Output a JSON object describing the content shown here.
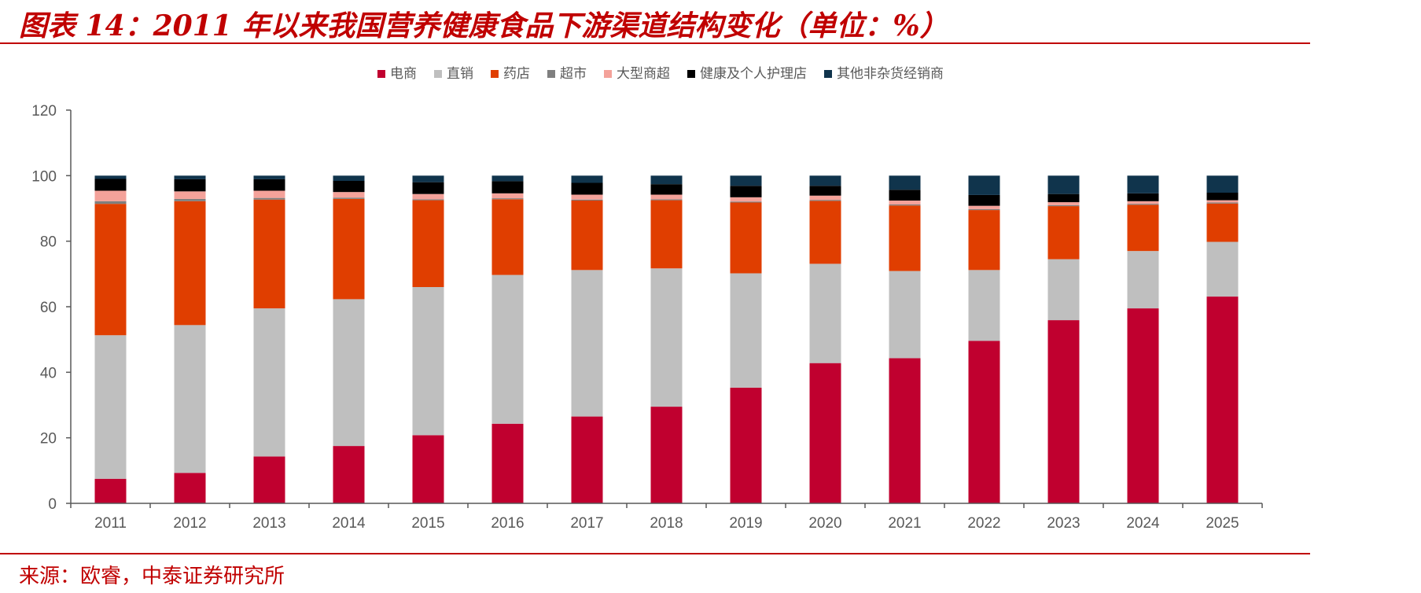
{
  "header": {
    "title": "图表 14：2011 年以来我国营养健康食品下游渠道结构变化（单位：%）"
  },
  "footer": {
    "source": "来源：欧睿，中泰证券研究所"
  },
  "colors": {
    "title": "#c00000",
    "series": [
      "#c0002f",
      "#bfbfbf",
      "#e03e00",
      "#7f7f7f",
      "#f4a29a",
      "#000000",
      "#10344c"
    ]
  },
  "chart_data": {
    "type": "bar",
    "stacked": true,
    "categories": [
      "2011",
      "2012",
      "2013",
      "2014",
      "2015",
      "2016",
      "2017",
      "2018",
      "2019",
      "2020",
      "2021",
      "2022",
      "2023",
      "2024",
      "2025"
    ],
    "ylim": [
      0,
      120
    ],
    "yticks": [
      0,
      20,
      40,
      60,
      80,
      100,
      120
    ],
    "grid": false,
    "legend_position": "top",
    "series": [
      {
        "name": "电商",
        "values": [
          7.5,
          9.3,
          14.3,
          17.5,
          20.8,
          24.3,
          26.5,
          29.5,
          35.3,
          42.8,
          44.3,
          49.6,
          55.9,
          59.5,
          63.1
        ]
      },
      {
        "name": "直销",
        "values": [
          43.8,
          45.1,
          45.2,
          44.8,
          45.2,
          45.4,
          44.7,
          42.2,
          34.9,
          30.3,
          26.6,
          21.6,
          18.6,
          17.5,
          16.7
        ]
      },
      {
        "name": "药店",
        "values": [
          40.1,
          37.8,
          33.2,
          30.6,
          26.5,
          23.1,
          21.2,
          20.8,
          21.6,
          19.2,
          20.0,
          18.3,
          16.2,
          14.1,
          11.7
        ]
      },
      {
        "name": "超市",
        "values": [
          0.8,
          0.7,
          0.5,
          0.4,
          0.3,
          0.3,
          0.3,
          0.3,
          0.3,
          0.3,
          0.3,
          0.3,
          0.3,
          0.3,
          0.3
        ]
      },
      {
        "name": "大型商超",
        "values": [
          3.2,
          2.3,
          2.2,
          1.7,
          1.6,
          1.5,
          1.5,
          1.4,
          1.3,
          1.3,
          1.2,
          1.0,
          0.9,
          0.8,
          0.7
        ]
      },
      {
        "name": "健康及个人护理店",
        "values": [
          3.6,
          3.7,
          3.5,
          3.4,
          3.6,
          3.7,
          3.6,
          3.2,
          3.5,
          3.0,
          3.3,
          3.3,
          2.5,
          2.4,
          2.3
        ]
      },
      {
        "name": "其他非杂货经销商",
        "values": [
          1.0,
          1.1,
          1.1,
          1.6,
          2.0,
          1.7,
          2.2,
          2.6,
          3.1,
          3.1,
          4.3,
          5.9,
          5.6,
          5.4,
          5.2
        ]
      }
    ]
  }
}
